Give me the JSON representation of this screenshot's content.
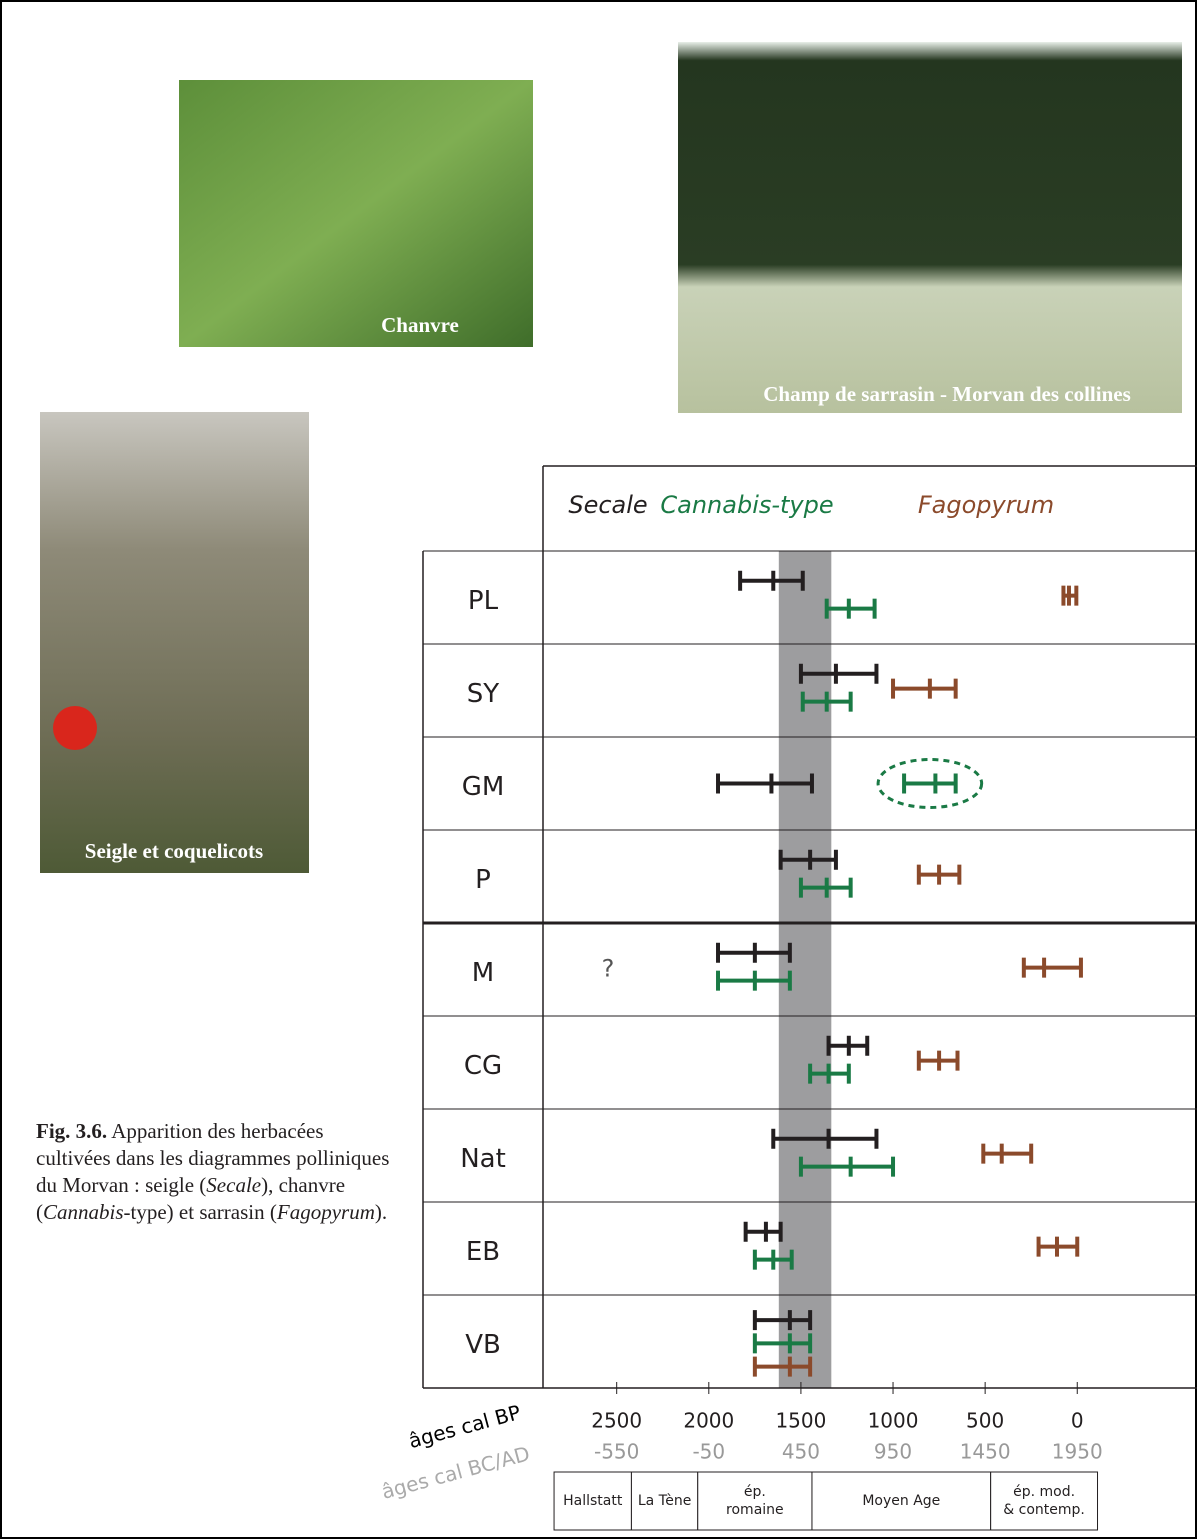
{
  "photos": [
    {
      "caption": "Chanvre"
    },
    {
      "caption": "Champ de sarrasin - Morvan des collines"
    },
    {
      "caption": "Seigle et coquelicots"
    }
  ],
  "caption": {
    "label": "Fig. 3.6.",
    "segments": [
      "Apparition des herbacées cultivées dans les diagrammes polliniques du Morvan : seigle (",
      "Secale",
      "), chanvre (",
      "Cannabis",
      "-type) et sarrasin (",
      "Fagopyrum",
      ")."
    ]
  },
  "chart_data": {
    "type": "range",
    "categories": [
      "PL",
      "SY",
      "GM",
      "P",
      "M",
      "CG",
      "Nat",
      "EB",
      "VB"
    ],
    "series": [
      {
        "name": "Secale",
        "color": "#231f20",
        "values": [
          [
            1830,
            1650,
            1490
          ],
          [
            1500,
            1310,
            1090
          ],
          [
            1950,
            1660,
            1440
          ],
          [
            1610,
            1450,
            1310
          ],
          [
            1950,
            1750,
            1560
          ],
          [
            1350,
            1240,
            1140
          ],
          [
            1650,
            1350,
            1090
          ],
          [
            1800,
            1690,
            1610
          ],
          [
            1750,
            1560,
            1450
          ]
        ]
      },
      {
        "name": "Cannabis-type",
        "color": "#1a7a45",
        "circled": [
          2
        ],
        "values": [
          [
            1360,
            1240,
            1100
          ],
          [
            1490,
            1360,
            1230
          ],
          [
            940,
            770,
            660
          ],
          [
            1500,
            1360,
            1230
          ],
          [
            1950,
            1750,
            1560
          ],
          [
            1450,
            1350,
            1240
          ],
          [
            1500,
            1230,
            1000
          ],
          [
            1750,
            1650,
            1550
          ],
          [
            1750,
            1560,
            1450
          ]
        ]
      },
      {
        "name": "Fagopyrum",
        "color": "#8b4a2b",
        "values": [
          [
            75,
            45,
            5
          ],
          [
            1000,
            800,
            660
          ],
          null,
          [
            860,
            750,
            640
          ],
          [
            290,
            180,
            -20
          ],
          [
            860,
            750,
            650
          ],
          [
            510,
            410,
            250
          ],
          [
            210,
            110,
            0
          ],
          [
            1750,
            1560,
            1450
          ]
        ]
      }
    ],
    "annotations": [
      {
        "text": "?",
        "category": 4
      }
    ],
    "separator_after": 3,
    "highlight_range": [
      1620,
      1335
    ],
    "xlim": [
      2900,
      -650
    ],
    "xticks": [
      2500,
      2000,
      1500,
      1000,
      500,
      0
    ],
    "xlabel": "âges cal BP",
    "x2lim": [
      -950,
      2600
    ],
    "x2ticks": [
      -550,
      -50,
      450,
      950,
      1450,
      1950
    ],
    "x2label": "âges cal BC/AD",
    "periods": [
      {
        "label": [
          "Hallstatt"
        ],
        "start": 2840,
        "end": 2420
      },
      {
        "label": [
          "La Tène"
        ],
        "start": 2420,
        "end": 2060
      },
      {
        "label": [
          "ép.",
          "romaine"
        ],
        "start": 2060,
        "end": 1440
      },
      {
        "label": [
          "Moyen Age"
        ],
        "start": 1440,
        "end": 470
      },
      {
        "label": [
          "ép. mod.",
          "& contemp."
        ],
        "start": 470,
        "end": -110
      }
    ]
  }
}
